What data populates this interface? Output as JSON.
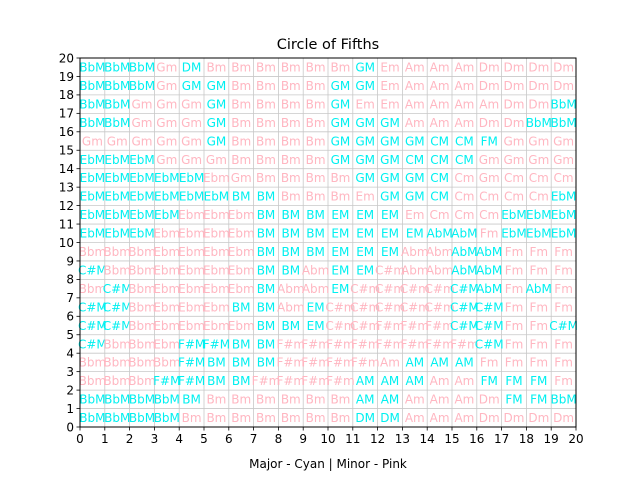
{
  "chart_data": {
    "type": "heatmap",
    "title": "Circle of Fifths",
    "xlabel": "Major - Cyan | Minor - Pink",
    "ylabel": "",
    "xlim": [
      0,
      20
    ],
    "ylim": [
      0,
      20
    ],
    "x_ticks": [
      "0",
      "1",
      "2",
      "3",
      "4",
      "5",
      "6",
      "7",
      "8",
      "9",
      "10",
      "11",
      "12",
      "13",
      "14",
      "15",
      "16",
      "17",
      "18",
      "19",
      "20"
    ],
    "y_ticks": [
      "0",
      "1",
      "2",
      "3",
      "4",
      "5",
      "6",
      "7",
      "8",
      "9",
      "10",
      "11",
      "12",
      "13",
      "14",
      "15",
      "16",
      "17",
      "18",
      "19",
      "20"
    ],
    "grid": true,
    "colors": {
      "major": "#00f0f0",
      "minor": "#ffb6c1",
      "grid": "#c8c8c8"
    },
    "rows": [
      [
        "BbM",
        "BbM",
        "BbM",
        "BbM",
        "Bm",
        "Bm",
        "Bm",
        "Bm",
        "Bm",
        "Bm",
        "Bm",
        "DM",
        "DM",
        "Am",
        "Am",
        "Am",
        "Dm",
        "Dm",
        "Dm",
        "Dm"
      ],
      [
        "BbM",
        "BbM",
        "BbM",
        "BbM",
        "BM",
        "Bm",
        "Bm",
        "Bm",
        "Bm",
        "Bm",
        "Bm",
        "AM",
        "AM",
        "Am",
        "Am",
        "Am",
        "Dm",
        "FM",
        "FM",
        "BbM"
      ],
      [
        "Bbm",
        "Bbm",
        "Bbm",
        "F#M",
        "F#M",
        "BM",
        "BM",
        "F#m",
        "F#m",
        "F#m",
        "F#m",
        "AM",
        "AM",
        "AM",
        "Am",
        "Am",
        "FM",
        "FM",
        "FM",
        "Fm"
      ],
      [
        "Bbm",
        "Bbm",
        "Bbm",
        "Bbm",
        "F#M",
        "BM",
        "BM",
        "BM",
        "F#m",
        "F#m",
        "F#m",
        "F#m",
        "Am",
        "AM",
        "AM",
        "AM",
        "Fm",
        "Fm",
        "Fm",
        "Fm"
      ],
      [
        "C#M",
        "Bbm",
        "Bbm",
        "Ebm",
        "F#M",
        "F#M",
        "BM",
        "BM",
        "F#m",
        "F#m",
        "F#m",
        "F#m",
        "F#m",
        "F#m",
        "F#m",
        "F#m",
        "C#M",
        "Fm",
        "Fm",
        "Fm"
      ],
      [
        "C#M",
        "C#M",
        "Bbm",
        "Ebm",
        "Ebm",
        "Ebm",
        "Ebm",
        "BM",
        "BM",
        "EM",
        "C#m",
        "C#m",
        "F#m",
        "F#m",
        "F#m",
        "C#M",
        "C#M",
        "Fm",
        "Fm",
        "C#M"
      ],
      [
        "C#M",
        "C#M",
        "Bbm",
        "Ebm",
        "Ebm",
        "Ebm",
        "BM",
        "BM",
        "Abm",
        "EM",
        "C#m",
        "C#m",
        "C#m",
        "C#m",
        "C#m",
        "C#M",
        "C#M",
        "Fm",
        "Fm",
        "Fm"
      ],
      [
        "Bbm",
        "C#M",
        "Bbm",
        "Ebm",
        "Ebm",
        "Ebm",
        "Ebm",
        "BM",
        "Abm",
        "Abm",
        "EM",
        "C#m",
        "C#m",
        "C#m",
        "C#m",
        "C#M",
        "AbM",
        "Fm",
        "AbM",
        "Fm"
      ],
      [
        "C#M",
        "Bbm",
        "Bbm",
        "Ebm",
        "Ebm",
        "Ebm",
        "Ebm",
        "BM",
        "BM",
        "Abm",
        "EM",
        "EM",
        "C#m",
        "Abm",
        "Abm",
        "AbM",
        "AbM",
        "Fm",
        "Fm",
        "Fm"
      ],
      [
        "Bbm",
        "Bbm",
        "Bbm",
        "Ebm",
        "Ebm",
        "Ebm",
        "Ebm",
        "BM",
        "BM",
        "BM",
        "EM",
        "EM",
        "EM",
        "Abm",
        "Abm",
        "AbM",
        "AbM",
        "Fm",
        "Fm",
        "Fm"
      ],
      [
        "EbM",
        "EbM",
        "EbM",
        "Ebm",
        "Ebm",
        "Ebm",
        "Ebm",
        "BM",
        "BM",
        "BM",
        "EM",
        "EM",
        "EM",
        "EM",
        "AbM",
        "AbM",
        "Fm",
        "EbM",
        "EbM",
        "EbM"
      ],
      [
        "EbM",
        "EbM",
        "EbM",
        "EbM",
        "Ebm",
        "Ebm",
        "Ebm",
        "BM",
        "BM",
        "BM",
        "EM",
        "EM",
        "EM",
        "Em",
        "Cm",
        "Cm",
        "Cm",
        "EbM",
        "EbM",
        "EbM"
      ],
      [
        "EbM",
        "EbM",
        "EbM",
        "EbM",
        "EbM",
        "EbM",
        "BM",
        "BM",
        "Bm",
        "Bm",
        "Bm",
        "Em",
        "GM",
        "GM",
        "CM",
        "Cm",
        "Cm",
        "Cm",
        "Cm",
        "EbM"
      ],
      [
        "EbM",
        "EbM",
        "EbM",
        "EbM",
        "EbM",
        "Ebm",
        "Gm",
        "Bm",
        "Bm",
        "Bm",
        "Bm",
        "GM",
        "GM",
        "GM",
        "CM",
        "Cm",
        "Gm",
        "Cm",
        "Cm",
        "Cm"
      ],
      [
        "EbM",
        "EbM",
        "EbM",
        "Gm",
        "Gm",
        "Gm",
        "Bm",
        "Bm",
        "Bm",
        "Bm",
        "GM",
        "GM",
        "GM",
        "CM",
        "CM",
        "CM",
        "Gm",
        "Gm",
        "Gm",
        "Gm"
      ],
      [
        "Gm",
        "Gm",
        "Gm",
        "Gm",
        "Gm",
        "GM",
        "Bm",
        "Bm",
        "Bm",
        "Bm",
        "GM",
        "GM",
        "GM",
        "GM",
        "CM",
        "CM",
        "FM",
        "Gm",
        "Gm",
        "Gm"
      ],
      [
        "BbM",
        "BbM",
        "Gm",
        "Gm",
        "Gm",
        "GM",
        "Bm",
        "Bm",
        "Bm",
        "Bm",
        "GM",
        "GM",
        "GM",
        "Am",
        "Am",
        "Am",
        "Dm",
        "Dm",
        "BbM",
        "BbM"
      ],
      [
        "BbM",
        "BbM",
        "Gm",
        "Gm",
        "Gm",
        "GM",
        "Bm",
        "Bm",
        "Bm",
        "Bm",
        "GM",
        "Em",
        "Em",
        "Am",
        "Am",
        "Am",
        "Am",
        "Dm",
        "Dm",
        "BbM"
      ],
      [
        "BbM",
        "BbM",
        "BbM",
        "Gm",
        "GM",
        "GM",
        "Bm",
        "Bm",
        "Bm",
        "Bm",
        "GM",
        "GM",
        "Em",
        "Am",
        "Am",
        "Am",
        "Dm",
        "Dm",
        "Dm",
        "Dm"
      ],
      [
        "BbM",
        "BbM",
        "BbM",
        "Gm",
        "DM",
        "Bm",
        "Bm",
        "Bm",
        "Bm",
        "Bm",
        "Bm",
        "GM",
        "Em",
        "Am",
        "Am",
        "Am",
        "Dm",
        "Dm",
        "Dm",
        "Dm"
      ]
    ]
  }
}
